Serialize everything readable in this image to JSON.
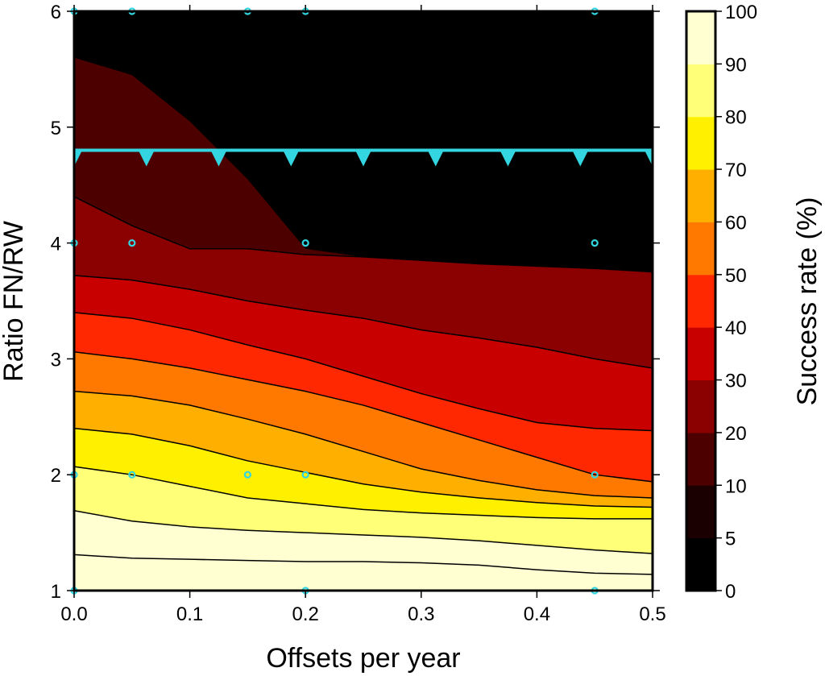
{
  "chart_data": {
    "type": "heatmap",
    "subtype": "filled-contour",
    "title": "",
    "xlabel": "Offsets per year",
    "ylabel": "Ratio FN/RW",
    "xlim": [
      0,
      0.5
    ],
    "ylim": [
      1,
      6
    ],
    "x_ticks": [
      "0.0",
      "0.1",
      "0.2",
      "0.3",
      "0.4",
      "0.5"
    ],
    "y_ticks": [
      "1",
      "2",
      "3",
      "4",
      "5",
      "6"
    ],
    "grid": false,
    "colorbar": {
      "label": "Success rate (%)",
      "levels": [
        0,
        5,
        10,
        20,
        30,
        40,
        50,
        60,
        70,
        80,
        90,
        100
      ],
      "tick_labels": [
        "0",
        "5",
        "10",
        "20",
        "30",
        "40",
        "50",
        "60",
        "70",
        "80",
        "90",
        "100"
      ],
      "colors": [
        "#000000",
        "#1a0000",
        "#4d0000",
        "#8b0000",
        "#c80000",
        "#ff2800",
        "#ff7800",
        "#ffaf00",
        "#fff000",
        "#ffff78",
        "#ffffd2"
      ]
    },
    "contour_x": [
      0,
      0.05,
      0.1,
      0.15,
      0.2,
      0.25,
      0.3,
      0.35,
      0.4,
      0.45,
      0.5
    ],
    "contours": [
      {
        "level": 5,
        "y": [
          5.6,
          5.45,
          5.05,
          4.55,
          3.95,
          3.88,
          3.85,
          3.82,
          3.8,
          3.78,
          3.75
        ]
      },
      {
        "level": 10,
        "y": [
          4.4,
          4.15,
          3.95,
          3.95,
          3.9,
          3.88,
          3.85,
          3.82,
          3.8,
          3.78,
          3.75
        ]
      },
      {
        "level": 20,
        "y": [
          3.72,
          3.68,
          3.6,
          3.5,
          3.42,
          3.35,
          3.25,
          3.18,
          3.1,
          3.0,
          2.92
        ]
      },
      {
        "level": 30,
        "y": [
          3.4,
          3.35,
          3.25,
          3.12,
          3.0,
          2.85,
          2.7,
          2.57,
          2.45,
          2.4,
          2.38
        ]
      },
      {
        "level": 40,
        "y": [
          3.06,
          3.0,
          2.92,
          2.82,
          2.72,
          2.6,
          2.45,
          2.3,
          2.15,
          2.0,
          1.94
        ]
      },
      {
        "level": 50,
        "y": [
          2.72,
          2.68,
          2.6,
          2.48,
          2.35,
          2.2,
          2.05,
          1.95,
          1.87,
          1.82,
          1.8
        ]
      },
      {
        "level": 60,
        "y": [
          2.4,
          2.35,
          2.25,
          2.12,
          2.02,
          1.92,
          1.85,
          1.8,
          1.76,
          1.73,
          1.72
        ]
      },
      {
        "level": 70,
        "y": [
          2.07,
          2.0,
          1.9,
          1.8,
          1.75,
          1.7,
          1.67,
          1.65,
          1.63,
          1.62,
          1.62
        ]
      },
      {
        "level": 80,
        "y": [
          1.69,
          1.6,
          1.55,
          1.52,
          1.5,
          1.48,
          1.46,
          1.43,
          1.39,
          1.35,
          1.32
        ]
      },
      {
        "level": 90,
        "y": [
          1.31,
          1.28,
          1.27,
          1.26,
          1.25,
          1.25,
          1.24,
          1.22,
          1.18,
          1.15,
          1.14
        ]
      }
    ],
    "threshold_line": {
      "y": 4.8,
      "color": "#33d6e0",
      "triangles_x": [
        0,
        0.0625,
        0.125,
        0.1875,
        0.25,
        0.3125,
        0.375,
        0.4375,
        0.5
      ]
    },
    "sample_points": {
      "color": "#33d6e0",
      "points": [
        {
          "x": 0.0,
          "y": 6
        },
        {
          "x": 0.05,
          "y": 6
        },
        {
          "x": 0.15,
          "y": 6
        },
        {
          "x": 0.2,
          "y": 6
        },
        {
          "x": 0.45,
          "y": 6
        },
        {
          "x": 0.0,
          "y": 4
        },
        {
          "x": 0.05,
          "y": 4
        },
        {
          "x": 0.2,
          "y": 4
        },
        {
          "x": 0.45,
          "y": 4
        },
        {
          "x": 0.0,
          "y": 2
        },
        {
          "x": 0.05,
          "y": 2
        },
        {
          "x": 0.15,
          "y": 2
        },
        {
          "x": 0.2,
          "y": 2
        },
        {
          "x": 0.45,
          "y": 2
        },
        {
          "x": 0.0,
          "y": 1
        },
        {
          "x": 0.2,
          "y": 1
        },
        {
          "x": 0.45,
          "y": 1
        }
      ]
    }
  }
}
